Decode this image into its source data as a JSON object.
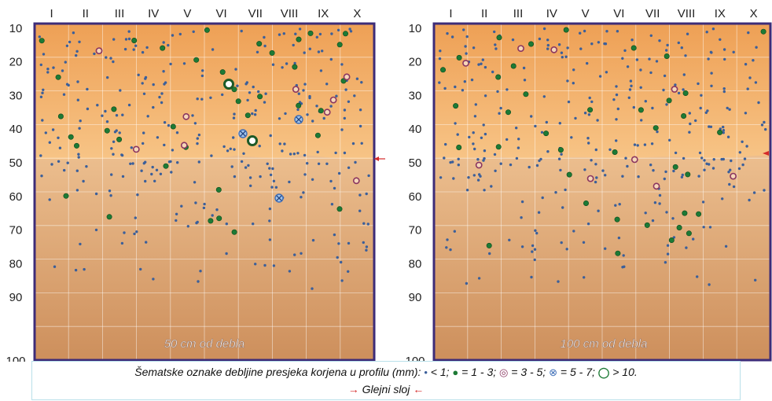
{
  "panels": [
    {
      "label": "50 cm od debla",
      "columns": [
        "I",
        "II",
        "III",
        "IV",
        "V",
        "VI",
        "VII",
        "VIII",
        "IX",
        "X"
      ],
      "depth_ticks": [
        "10",
        "20",
        "30",
        "40",
        "50",
        "60",
        "70",
        "80",
        "90",
        "100"
      ],
      "glejni_depth_cm": 40
    },
    {
      "label": "100 cm od debla",
      "columns": [
        "I",
        "II",
        "III",
        "IV",
        "V",
        "VI",
        "VII",
        "VIII",
        "IX",
        "X"
      ],
      "depth_ticks": [
        "10",
        "20",
        "30",
        "40",
        "50",
        "60",
        "70",
        "80",
        "90",
        "100"
      ],
      "glejni_depth_cm": 39
    }
  ],
  "legend": {
    "prefix": "Šematske oznake debljine presjeka korjena u profilu (mm):",
    "items": [
      {
        "symbol": "small-dot",
        "text": "< 1;",
        "color": "#3b5f9a"
      },
      {
        "symbol": "green-dot",
        "text": "= 1 - 3;",
        "color": "#1d7a35"
      },
      {
        "symbol": "purple-ring",
        "text": "= 3 - 5;",
        "color": "#8a3560"
      },
      {
        "symbol": "blue-cross-circle",
        "text": "= 5 - 7;",
        "color": "#3f6fb8"
      },
      {
        "symbol": "thick-green-ring",
        "text": "> 10.",
        "color": "#1d7a35"
      }
    ],
    "glejni_label": "Glejni sloj"
  },
  "colors": {
    "soil_top": "#f0a55a",
    "soil_bottom": "#c98a5a",
    "frame": "#3d2c78",
    "glejni_arrow": "#d42a2a"
  }
}
